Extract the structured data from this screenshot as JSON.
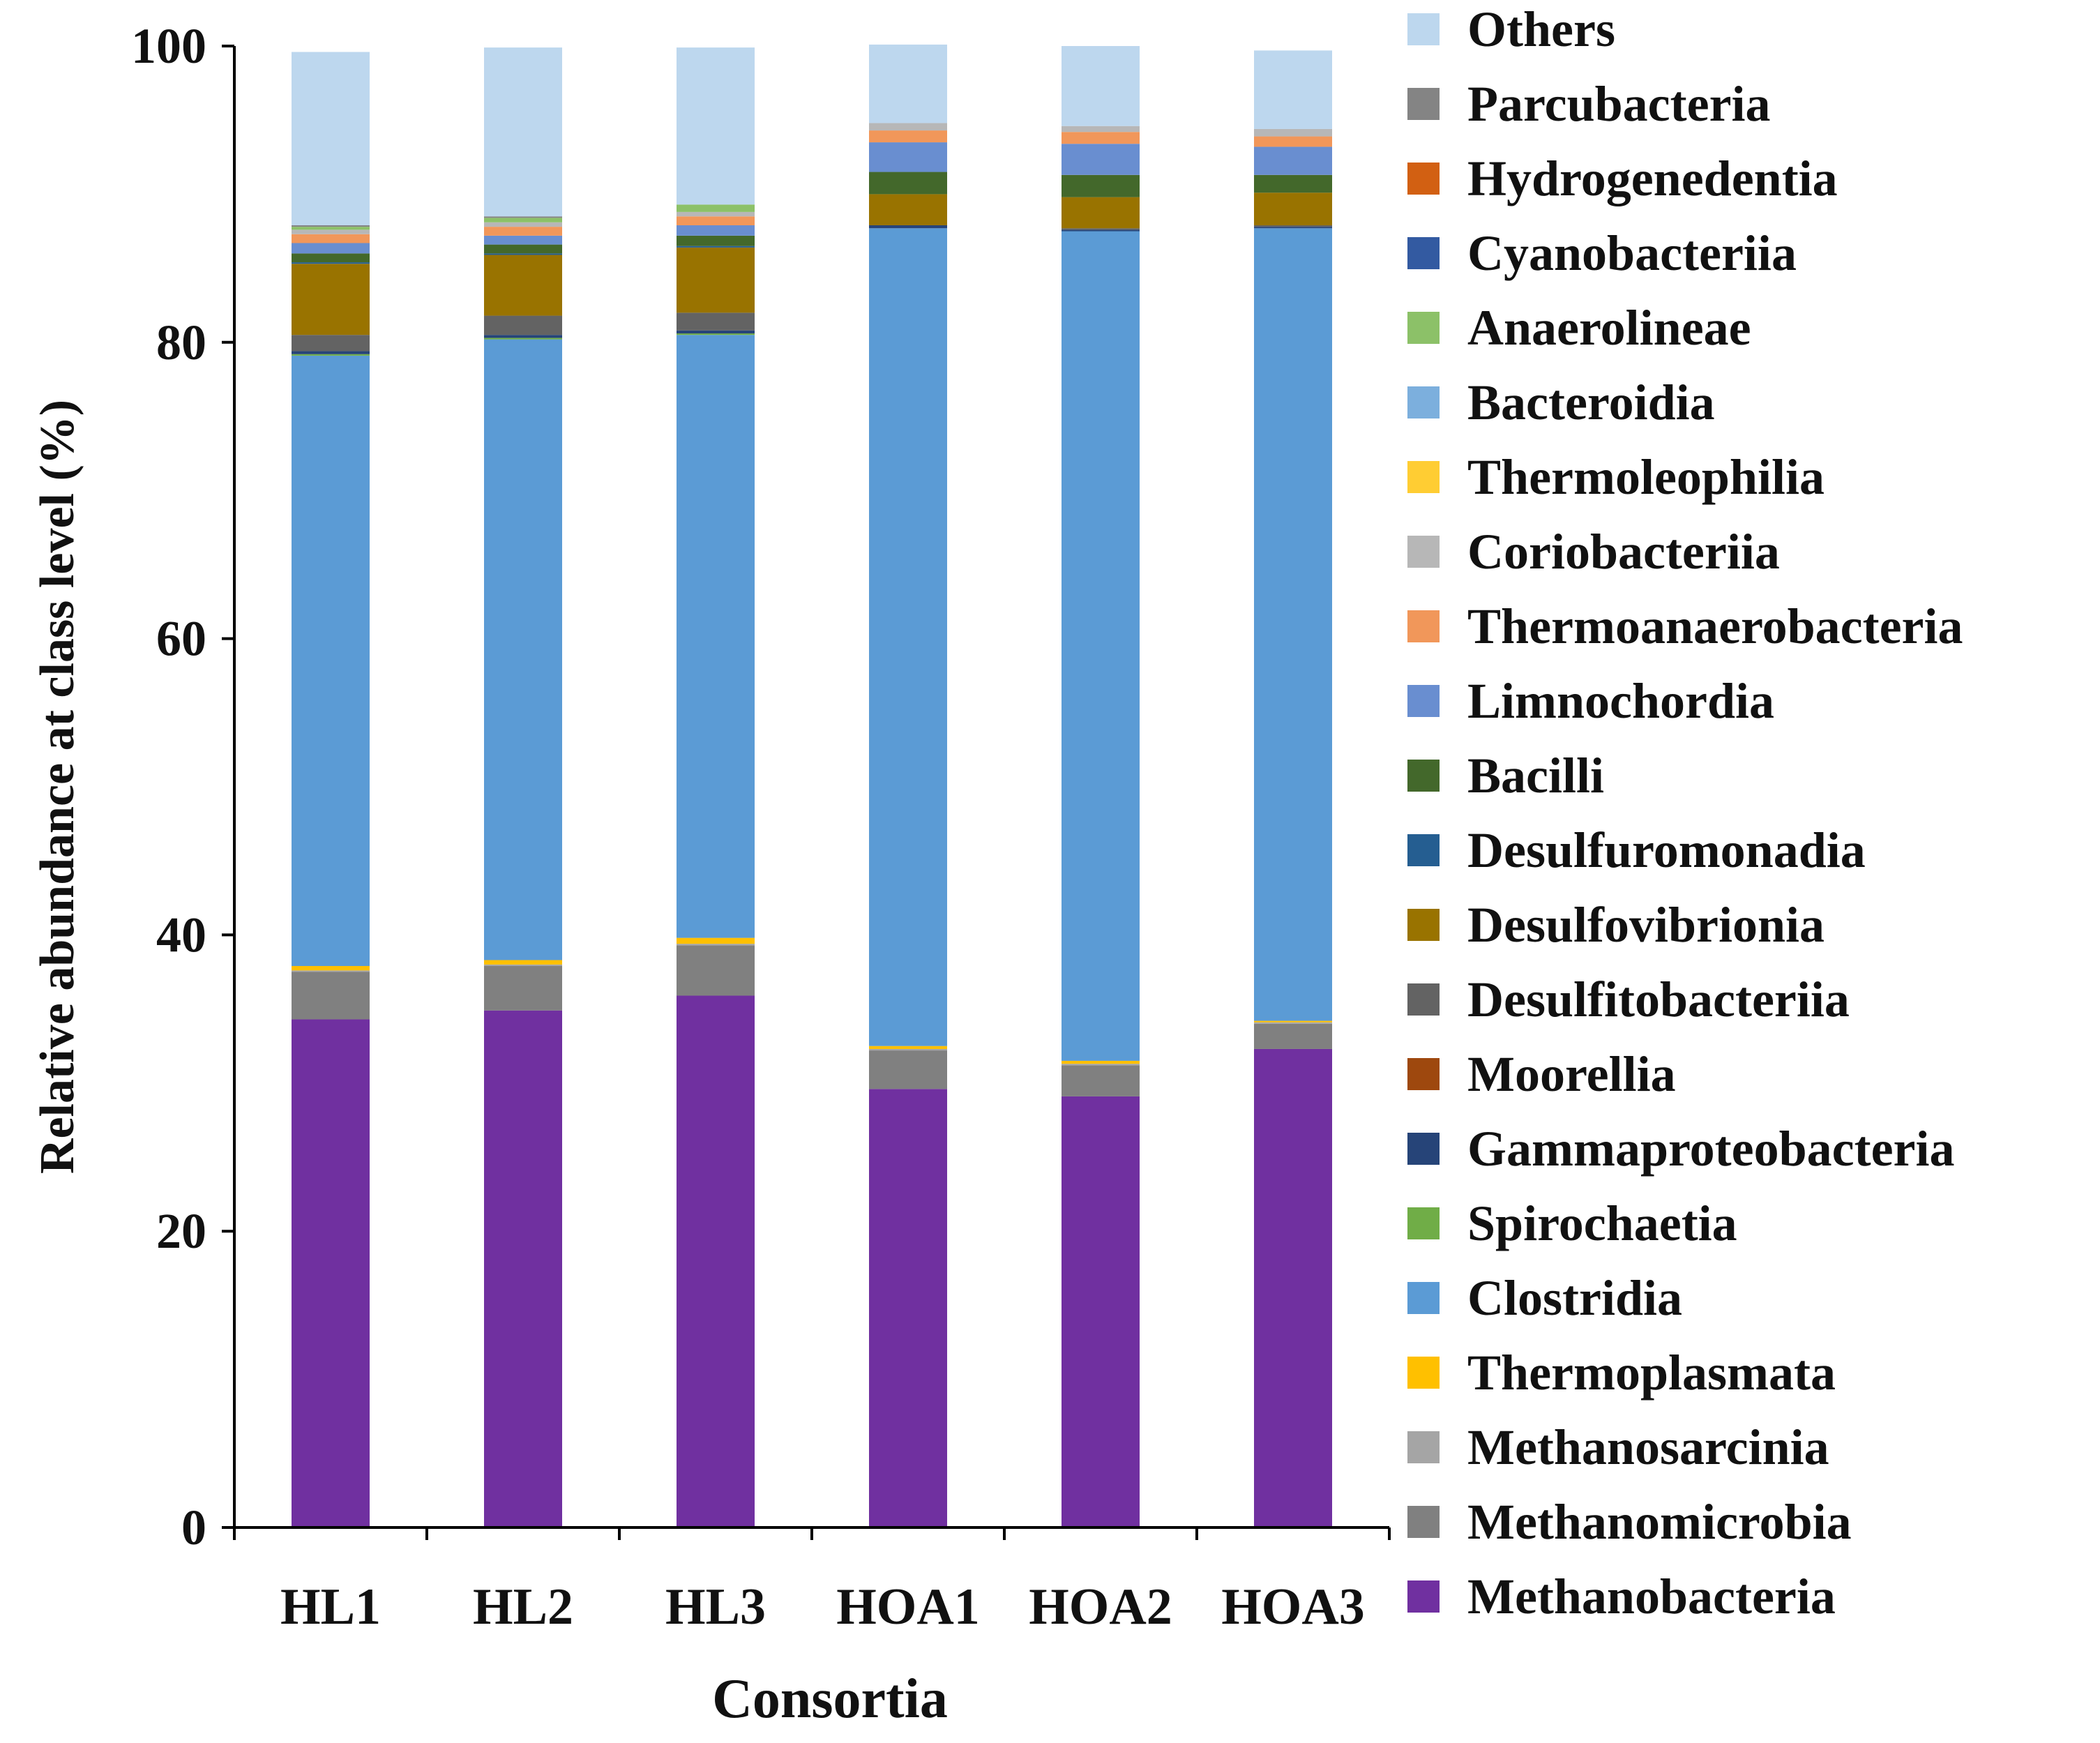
{
  "chart_data": {
    "type": "bar",
    "stacked": true,
    "xlabel": "Consortia",
    "ylabel": "Relative abundance at class level (%)",
    "ylim": [
      0,
      100
    ],
    "yticks": [
      "0",
      "20",
      "40",
      "60",
      "80",
      "100"
    ],
    "categories": [
      "HL1",
      "HL2",
      "HL3",
      "HOA1",
      "HOA2",
      "HOA3"
    ],
    "grid": false,
    "legend_position": "right",
    "series": [
      {
        "name": "Methanobacteria",
        "color": "#7030A0",
        "values": [
          34.3,
          34.9,
          35.9,
          29.6,
          29.1,
          32.3
        ]
      },
      {
        "name": "Methanomicrobia",
        "color": "#808080",
        "values": [
          3.2,
          3.0,
          3.4,
          2.6,
          2.1,
          1.7
        ]
      },
      {
        "name": "Methanosarcinia",
        "color": "#A5A5A5",
        "values": [
          0.1,
          0.1,
          0.1,
          0.1,
          0.1,
          0.1
        ]
      },
      {
        "name": "Thermoplasmata",
        "color": "#FFC000",
        "values": [
          0.3,
          0.3,
          0.4,
          0.2,
          0.2,
          0.1
        ]
      },
      {
        "name": "Clostridia",
        "color": "#5B9BD5",
        "values": [
          41.2,
          41.9,
          40.7,
          55.2,
          56.0,
          53.5
        ]
      },
      {
        "name": "Spirochaetia",
        "color": "#70AD47",
        "values": [
          0.1,
          0.1,
          0.1,
          0.0,
          0.0,
          0.0
        ]
      },
      {
        "name": "Gammaproteobacteria",
        "color": "#264478",
        "values": [
          0.2,
          0.2,
          0.2,
          0.2,
          0.1,
          0.1
        ]
      },
      {
        "name": "Moorellia",
        "color": "#9E480E",
        "values": [
          0.0,
          0.0,
          0.0,
          0.0,
          0.0,
          0.0
        ]
      },
      {
        "name": "Desulfitobacteriia",
        "color": "#636363",
        "values": [
          1.1,
          1.3,
          1.2,
          0.0,
          0.1,
          0.1
        ]
      },
      {
        "name": "Desulfovibrionia",
        "color": "#997300",
        "values": [
          4.8,
          4.1,
          4.4,
          2.1,
          2.1,
          2.2
        ]
      },
      {
        "name": "Desulfuromonadia",
        "color": "#255E91",
        "values": [
          0.1,
          0.1,
          0.1,
          0.0,
          0.0,
          0.0
        ]
      },
      {
        "name": "Bacilli",
        "color": "#43682B",
        "values": [
          0.6,
          0.6,
          0.7,
          1.5,
          1.5,
          1.2
        ]
      },
      {
        "name": "Limnochordia",
        "color": "#698ED0",
        "values": [
          0.7,
          0.6,
          0.7,
          2.0,
          2.1,
          1.9
        ]
      },
      {
        "name": "Thermoanaerobacteria",
        "color": "#F1975A",
        "values": [
          0.6,
          0.6,
          0.6,
          0.8,
          0.8,
          0.7
        ]
      },
      {
        "name": "Coriobacteriia",
        "color": "#B7B7B7",
        "values": [
          0.3,
          0.3,
          0.3,
          0.5,
          0.4,
          0.5
        ]
      },
      {
        "name": "Thermoleophilia",
        "color": "#FFCD33",
        "values": [
          0.0,
          0.0,
          0.0,
          0.0,
          0.0,
          0.0
        ]
      },
      {
        "name": "Bacteroidia",
        "color": "#7CAFDD",
        "values": [
          0.0,
          0.0,
          0.0,
          0.0,
          0.0,
          0.0
        ]
      },
      {
        "name": "Anaerolineae",
        "color": "#8CC168",
        "values": [
          0.2,
          0.3,
          0.5,
          0.0,
          0.0,
          0.0
        ]
      },
      {
        "name": "Cyanobacteriia",
        "color": "#335AA1",
        "values": [
          0.0,
          0.0,
          0.0,
          0.0,
          0.0,
          0.0
        ]
      },
      {
        "name": "Hydrogenedentia",
        "color": "#D26012",
        "values": [
          0.0,
          0.0,
          0.0,
          0.0,
          0.0,
          0.0
        ]
      },
      {
        "name": "Parcubacteria",
        "color": "#848484",
        "values": [
          0.1,
          0.1,
          0.0,
          0.0,
          0.0,
          0.0
        ]
      },
      {
        "name": "Others",
        "color": "#BDD7EE",
        "values": [
          11.7,
          11.4,
          10.6,
          5.3,
          5.4,
          5.3
        ]
      }
    ]
  }
}
